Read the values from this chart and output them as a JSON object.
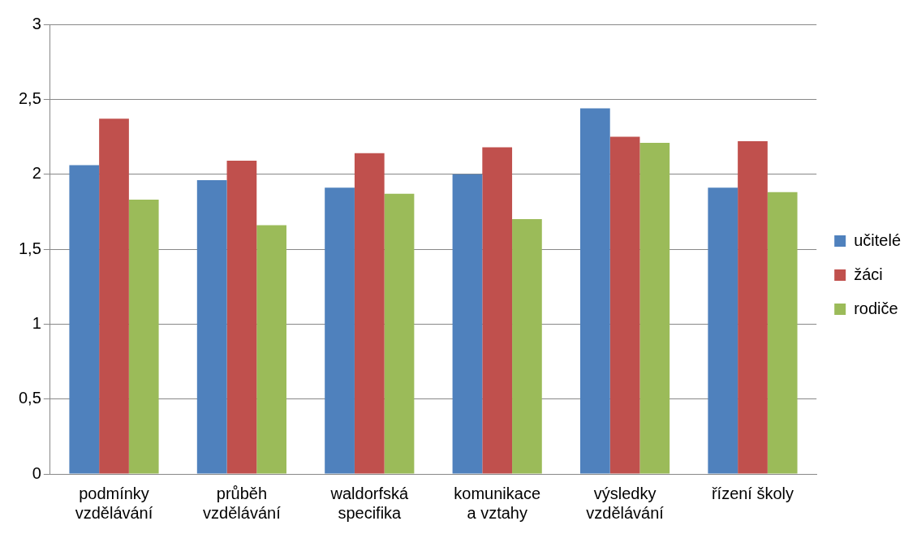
{
  "chart_data": {
    "type": "bar",
    "categories": [
      "podmínky\nvzdělávání",
      "průběh\nvzdělávání",
      "waldorfská\nspecifika",
      "komunikace\na vztahy",
      "výsledky\nvzdělávání",
      "řízení školy"
    ],
    "series": [
      {
        "name": "učitelé",
        "color": "#4f81bd",
        "values": [
          2.06,
          1.96,
          1.91,
          2.0,
          2.44,
          1.91
        ]
      },
      {
        "name": "žáci",
        "color": "#c0504d",
        "values": [
          2.37,
          2.09,
          2.14,
          2.18,
          2.25,
          2.22
        ]
      },
      {
        "name": "rodiče",
        "color": "#9bbb59",
        "values": [
          1.83,
          1.66,
          1.87,
          1.7,
          2.21,
          1.88
        ]
      }
    ],
    "ylim": [
      0,
      3
    ],
    "yticks": [
      0,
      {
        "value": 0.5,
        "label": "0,5"
      },
      1,
      {
        "value": 1.5,
        "label": "1,5"
      },
      2,
      {
        "value": 2.5,
        "label": "2,5"
      },
      3
    ],
    "grid": "y",
    "legend": "right"
  }
}
